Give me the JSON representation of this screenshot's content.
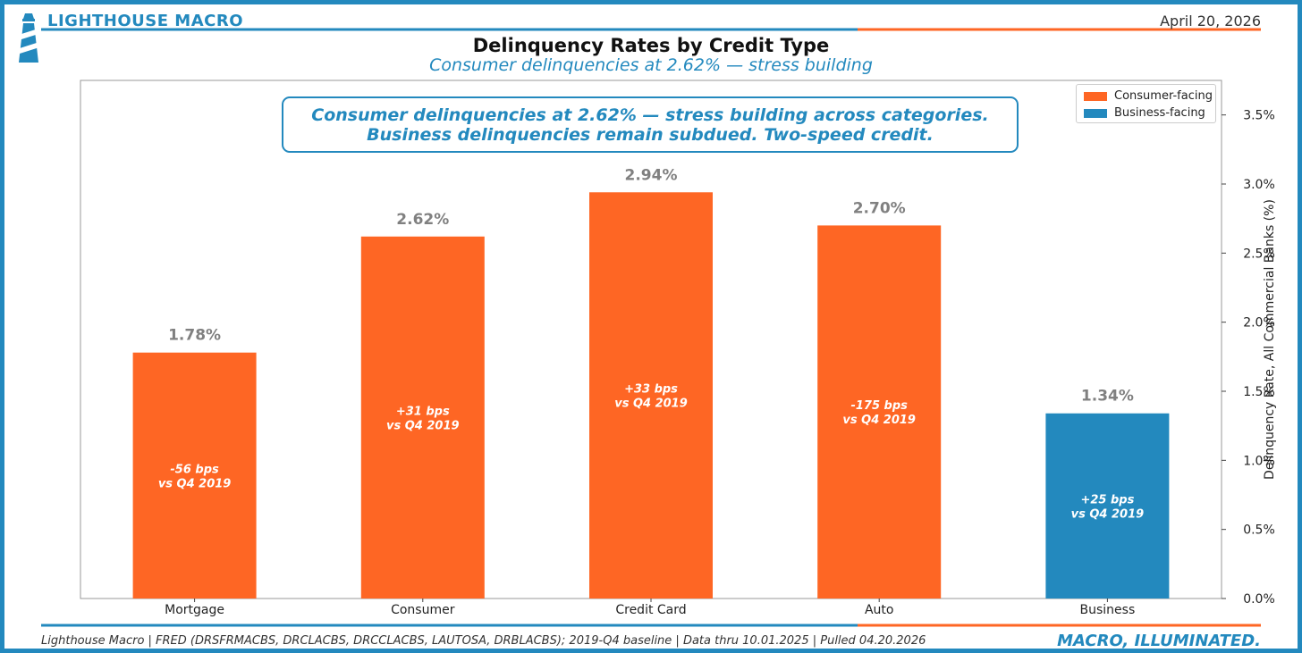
{
  "header": {
    "brand": "LIGHTHOUSE MACRO",
    "date": "April 20, 2026",
    "title": "Delinquency Rates by Credit Type",
    "subtitle": "Consumer delinquencies at 2.62% — stress building"
  },
  "callout": {
    "line1": "Consumer delinquencies at 2.62% — stress building across categories.",
    "line2": "Business delinquencies remain subdued. Two-speed credit."
  },
  "legend": [
    {
      "label": "Consumer-facing",
      "color": "#fe6624"
    },
    {
      "label": "Business-facing",
      "color": "#2389be"
    }
  ],
  "footer": {
    "source": "Lighthouse Macro | FRED (DRSFRMACBS, DRCLACBS, DRCCLACBS, LAUTOSA, DRBLACBS); 2019-Q4 baseline | Data thru 10.01.2025 | Pulled 04.20.2026",
    "tagline": "MACRO, ILLUMINATED."
  },
  "colors": {
    "accent_blue": "#2389be",
    "accent_orange": "#fe6624",
    "value_label_gray": "#808080"
  },
  "chart_data": {
    "type": "bar",
    "categories": [
      "Mortgage",
      "Consumer",
      "Credit Card",
      "Auto",
      "Business"
    ],
    "values": [
      1.78,
      2.62,
      2.94,
      2.7,
      1.34
    ],
    "value_labels": [
      "1.78%",
      "2.62%",
      "2.94%",
      "2.70%",
      "1.34%"
    ],
    "group": [
      "Consumer-facing",
      "Consumer-facing",
      "Consumer-facing",
      "Consumer-facing",
      "Business-facing"
    ],
    "change_bps_label": [
      "-56 bps",
      "+31 bps",
      "+33 bps",
      "-175 bps",
      "+25 bps"
    ],
    "change_baseline_label": "vs Q4 2019",
    "ylabel": "Delinquency Rate, All Commercial Banks (%)",
    "xlabel": "",
    "ylim": [
      0,
      3.75
    ],
    "yticks": [
      0,
      0.5,
      1.0,
      1.5,
      2.0,
      2.5,
      3.0,
      3.5
    ],
    "ytick_labels": [
      "0.0%",
      "0.5%",
      "1.0%",
      "1.5%",
      "2.0%",
      "2.5%",
      "3.0%",
      "3.5%"
    ],
    "y_axis_side": "right",
    "grid": false,
    "legend_position": "top-right"
  }
}
